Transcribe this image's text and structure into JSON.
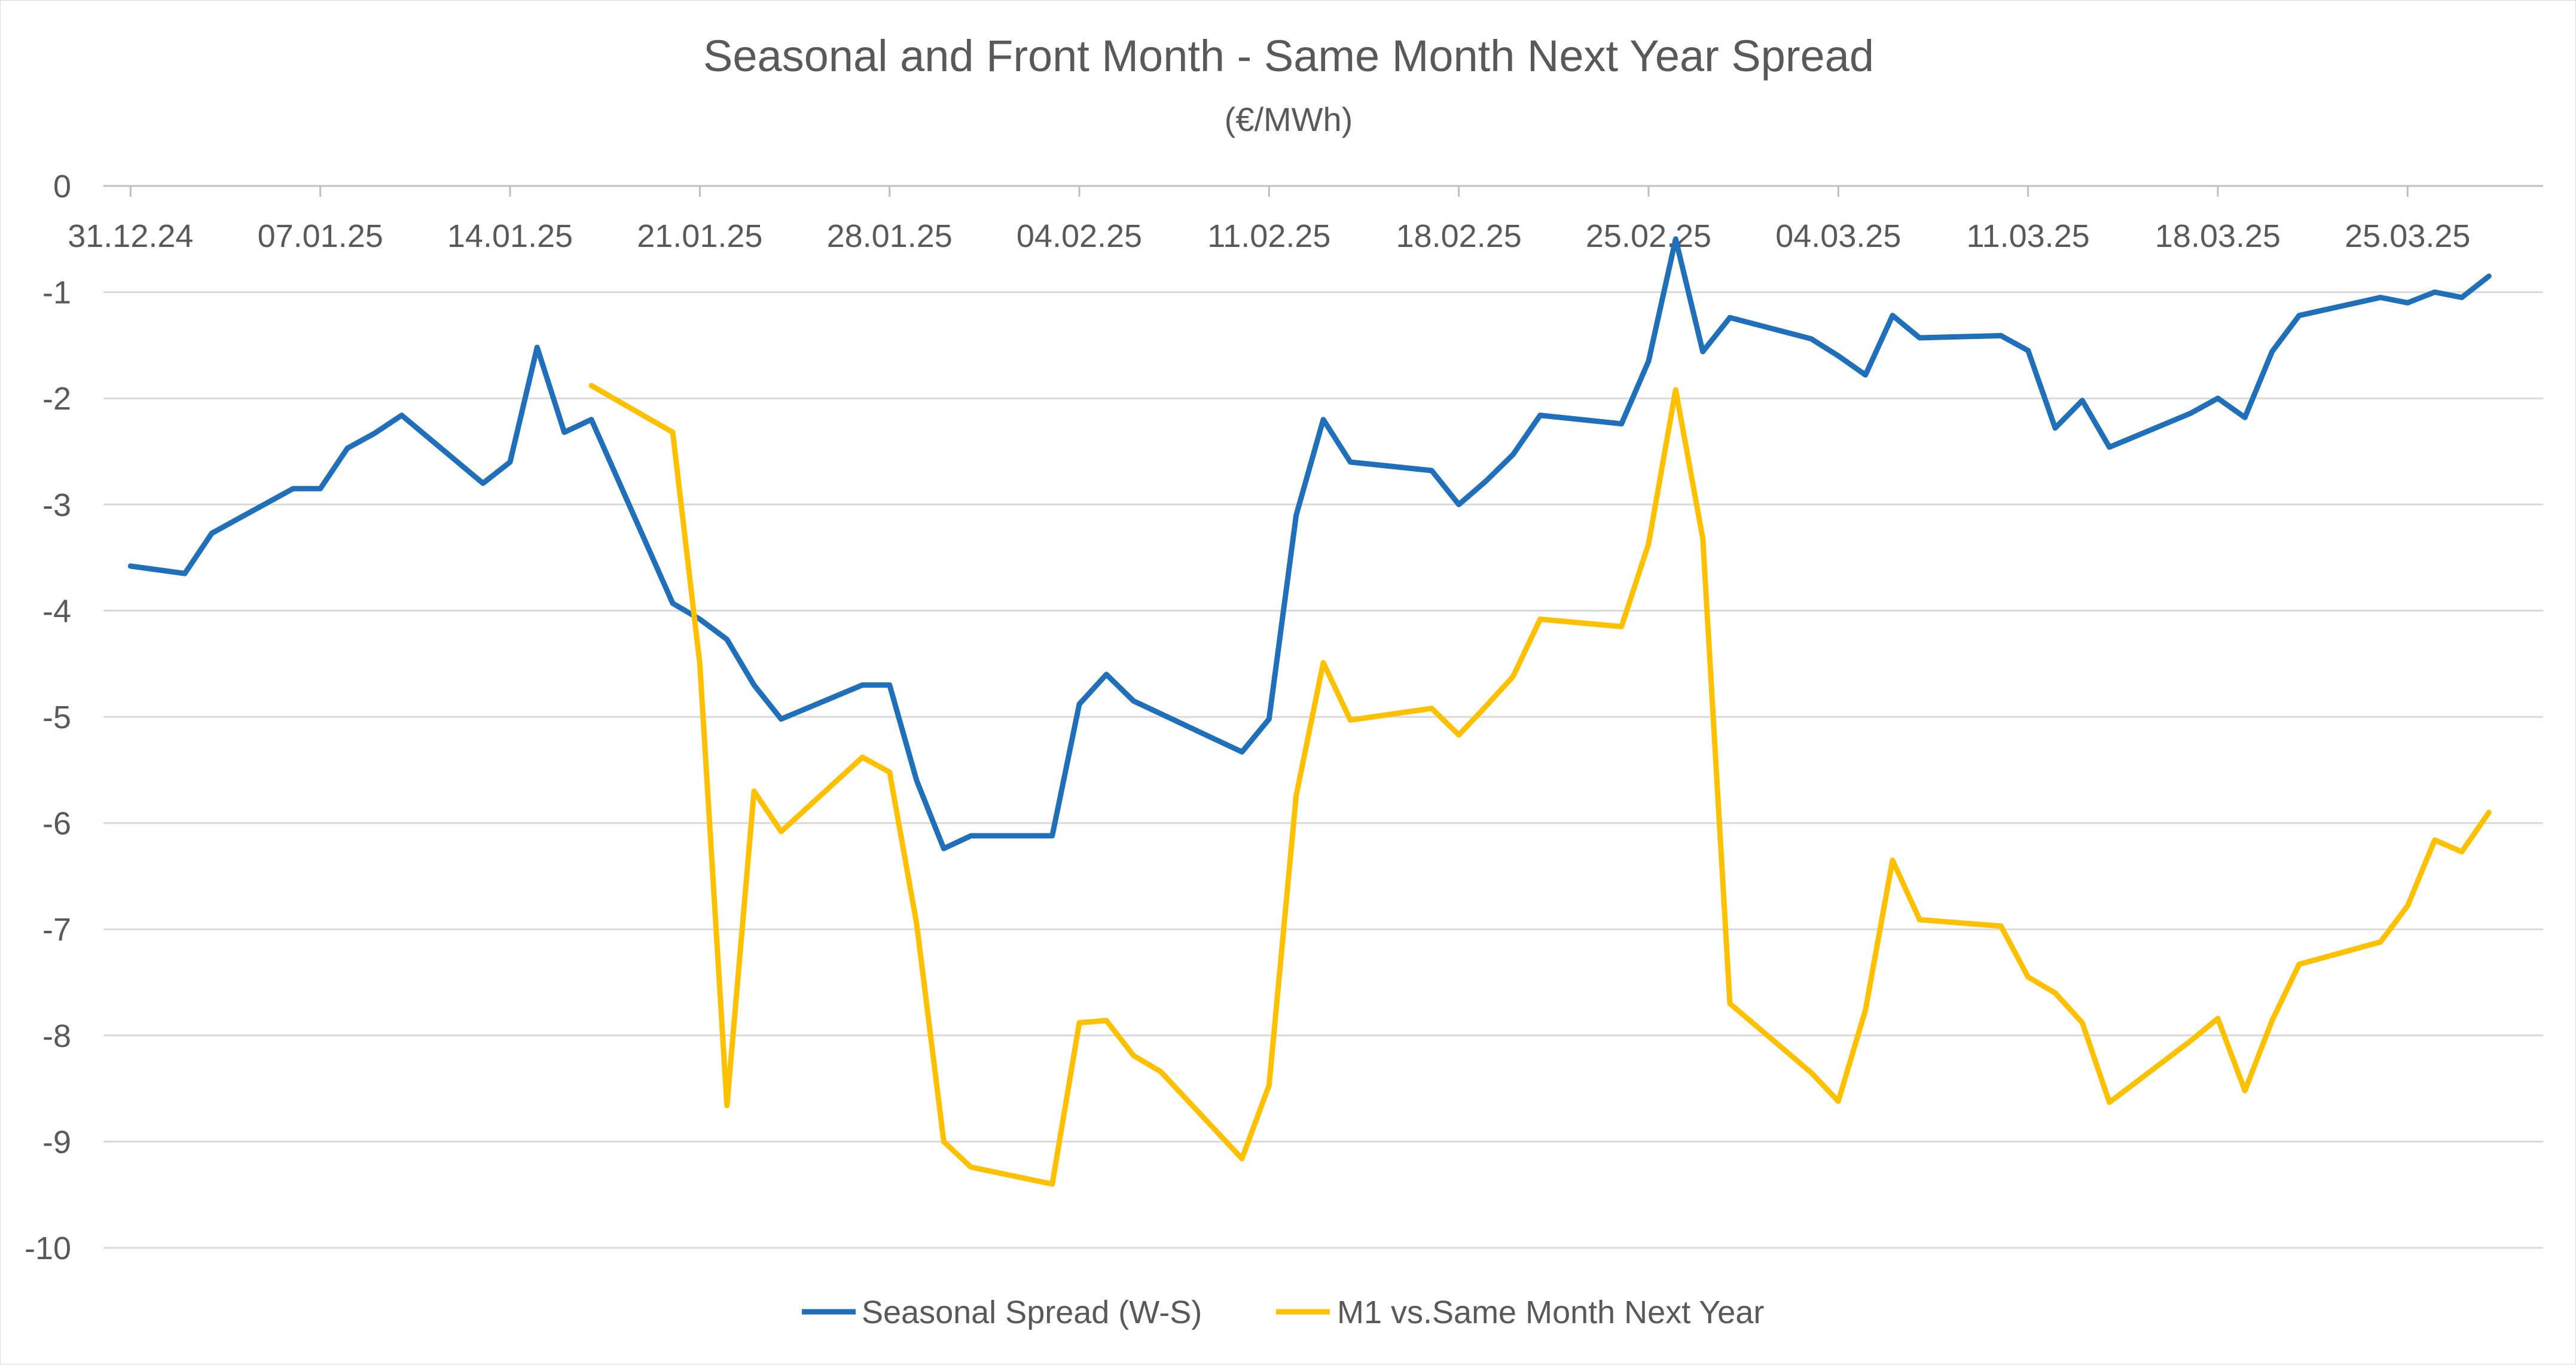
{
  "chart_data": {
    "type": "line",
    "title": "Seasonal and Front Month - Same Month Next Year Spread",
    "subtitle": "(€/MWh)",
    "xlabel": "",
    "ylabel": "",
    "ylim": [
      -10,
      0
    ],
    "y_ticks": [
      0,
      -1,
      -2,
      -3,
      -4,
      -5,
      -6,
      -7,
      -8,
      -9,
      -10
    ],
    "xlim": [
      "2024-12-30",
      "2025-03-30"
    ],
    "x_ticks": [
      {
        "date": "2024-12-31",
        "label": "31.12.24"
      },
      {
        "date": "2025-01-07",
        "label": "07.01.25"
      },
      {
        "date": "2025-01-14",
        "label": "14.01.25"
      },
      {
        "date": "2025-01-21",
        "label": "21.01.25"
      },
      {
        "date": "2025-01-28",
        "label": "28.01.25"
      },
      {
        "date": "2025-02-04",
        "label": "04.02.25"
      },
      {
        "date": "2025-02-11",
        "label": "11.02.25"
      },
      {
        "date": "2025-02-18",
        "label": "18.02.25"
      },
      {
        "date": "2025-02-25",
        "label": "25.02.25"
      },
      {
        "date": "2025-03-04",
        "label": "04.03.25"
      },
      {
        "date": "2025-03-11",
        "label": "11.03.25"
      },
      {
        "date": "2025-03-18",
        "label": "18.03.25"
      },
      {
        "date": "2025-03-25",
        "label": "25.03.25"
      }
    ],
    "x_axis_position": "top",
    "grid": true,
    "legend": "bottom",
    "series": [
      {
        "name": "Seasonal Spread (W-S)",
        "color": "#1f6fba",
        "points": [
          [
            "2024-12-31",
            -3.58
          ],
          [
            "2025-01-02",
            -3.65
          ],
          [
            "2025-01-03",
            -3.27
          ],
          [
            "2025-01-06",
            -2.85
          ],
          [
            "2025-01-07",
            -2.85
          ],
          [
            "2025-01-08",
            -2.47
          ],
          [
            "2025-01-09",
            -2.33
          ],
          [
            "2025-01-10",
            -2.16
          ],
          [
            "2025-01-13",
            -2.8
          ],
          [
            "2025-01-14",
            -2.6
          ],
          [
            "2025-01-15",
            -1.52
          ],
          [
            "2025-01-16",
            -2.32
          ],
          [
            "2025-01-17",
            -2.2
          ],
          [
            "2025-01-20",
            -3.93
          ],
          [
            "2025-01-21",
            -4.08
          ],
          [
            "2025-01-22",
            -4.27
          ],
          [
            "2025-01-23",
            -4.7
          ],
          [
            "2025-01-24",
            -5.02
          ],
          [
            "2025-01-27",
            -4.7
          ],
          [
            "2025-01-28",
            -4.7
          ],
          [
            "2025-01-29",
            -5.6
          ],
          [
            "2025-01-30",
            -6.24
          ],
          [
            "2025-01-31",
            -6.12
          ],
          [
            "2025-02-03",
            -6.12
          ],
          [
            "2025-02-04",
            -4.88
          ],
          [
            "2025-02-05",
            -4.6
          ],
          [
            "2025-02-06",
            -4.85
          ],
          [
            "2025-02-10",
            -5.33
          ],
          [
            "2025-02-11",
            -5.02
          ],
          [
            "2025-02-12",
            -3.1
          ],
          [
            "2025-02-13",
            -2.2
          ],
          [
            "2025-02-14",
            -2.6
          ],
          [
            "2025-02-17",
            -2.68
          ],
          [
            "2025-02-18",
            -3.0
          ],
          [
            "2025-02-19",
            -2.78
          ],
          [
            "2025-02-20",
            -2.53
          ],
          [
            "2025-02-21",
            -2.16
          ],
          [
            "2025-02-24",
            -2.24
          ],
          [
            "2025-02-25",
            -1.65
          ],
          [
            "2025-02-26",
            -0.5
          ],
          [
            "2025-02-27",
            -1.56
          ],
          [
            "2025-02-28",
            -1.24
          ],
          [
            "2025-03-03",
            -1.44
          ],
          [
            "2025-03-04",
            -1.6
          ],
          [
            "2025-03-05",
            -1.78
          ],
          [
            "2025-03-06",
            -1.22
          ],
          [
            "2025-03-07",
            -1.43
          ],
          [
            "2025-03-10",
            -1.41
          ],
          [
            "2025-03-11",
            -1.55
          ],
          [
            "2025-03-12",
            -2.28
          ],
          [
            "2025-03-13",
            -2.02
          ],
          [
            "2025-03-14",
            -2.46
          ],
          [
            "2025-03-17",
            -2.14
          ],
          [
            "2025-03-18",
            -2.0
          ],
          [
            "2025-03-19",
            -2.18
          ],
          [
            "2025-03-20",
            -1.56
          ],
          [
            "2025-03-21",
            -1.22
          ],
          [
            "2025-03-24",
            -1.05
          ],
          [
            "2025-03-25",
            -1.1
          ],
          [
            "2025-03-26",
            -1.0
          ],
          [
            "2025-03-27",
            -1.05
          ],
          [
            "2025-03-28",
            -0.85
          ]
        ]
      },
      {
        "name": "M1 vs.Same Month Next Year",
        "color": "#ffc000",
        "points": [
          [
            "2025-01-17",
            -1.88
          ],
          [
            "2025-01-20",
            -2.32
          ],
          [
            "2025-01-21",
            -4.5
          ],
          [
            "2025-01-22",
            -8.66
          ],
          [
            "2025-01-23",
            -5.7
          ],
          [
            "2025-01-24",
            -6.08
          ],
          [
            "2025-01-27",
            -5.38
          ],
          [
            "2025-01-28",
            -5.52
          ],
          [
            "2025-01-29",
            -6.95
          ],
          [
            "2025-01-30",
            -9.0
          ],
          [
            "2025-01-31",
            -9.24
          ],
          [
            "2025-02-03",
            -9.4
          ],
          [
            "2025-02-04",
            -7.88
          ],
          [
            "2025-02-05",
            -7.86
          ],
          [
            "2025-02-06",
            -8.19
          ],
          [
            "2025-02-07",
            -8.34
          ],
          [
            "2025-02-10",
            -9.16
          ],
          [
            "2025-02-11",
            -8.47
          ],
          [
            "2025-02-12",
            -5.74
          ],
          [
            "2025-02-13",
            -4.49
          ],
          [
            "2025-02-14",
            -5.03
          ],
          [
            "2025-02-17",
            -4.92
          ],
          [
            "2025-02-18",
            -5.17
          ],
          [
            "2025-02-19",
            -4.9
          ],
          [
            "2025-02-20",
            -4.62
          ],
          [
            "2025-02-21",
            -4.08
          ],
          [
            "2025-02-24",
            -4.15
          ],
          [
            "2025-02-25",
            -3.37
          ],
          [
            "2025-02-26",
            -1.92
          ],
          [
            "2025-02-27",
            -3.32
          ],
          [
            "2025-02-28",
            -7.7
          ],
          [
            "2025-03-03",
            -8.35
          ],
          [
            "2025-03-04",
            -8.62
          ],
          [
            "2025-03-05",
            -7.76
          ],
          [
            "2025-03-06",
            -6.35
          ],
          [
            "2025-03-07",
            -6.91
          ],
          [
            "2025-03-10",
            -6.97
          ],
          [
            "2025-03-11",
            -7.45
          ],
          [
            "2025-03-12",
            -7.6
          ],
          [
            "2025-03-13",
            -7.88
          ],
          [
            "2025-03-14",
            -8.63
          ],
          [
            "2025-03-17",
            -8.05
          ],
          [
            "2025-03-18",
            -7.84
          ],
          [
            "2025-03-19",
            -8.52
          ],
          [
            "2025-03-20",
            -7.86
          ],
          [
            "2025-03-21",
            -7.33
          ],
          [
            "2025-03-24",
            -7.12
          ],
          [
            "2025-03-25",
            -6.78
          ],
          [
            "2025-03-26",
            -6.16
          ],
          [
            "2025-03-27",
            -6.27
          ],
          [
            "2025-03-28",
            -5.9
          ]
        ]
      }
    ]
  }
}
